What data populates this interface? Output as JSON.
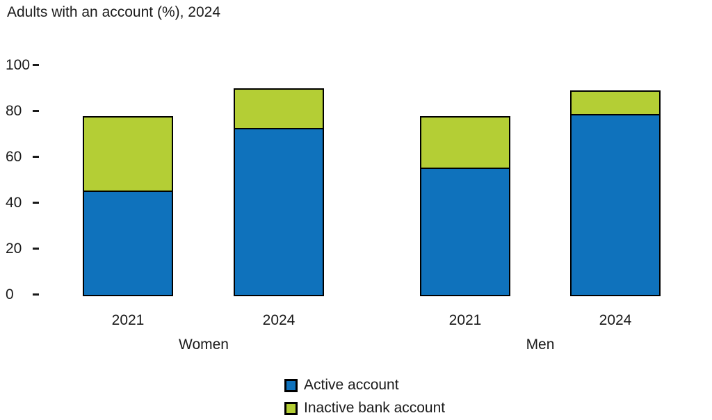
{
  "page": {
    "background_color": "#ffffff",
    "text_color": "#1a1a1a"
  },
  "chart_data": {
    "type": "bar",
    "stacked": true,
    "title": "Adults with an account (%), 2024",
    "xlabel": "",
    "ylabel": "",
    "ylim": [
      0,
      100
    ],
    "yticks": [
      0,
      20,
      40,
      60,
      80,
      100
    ],
    "grid": false,
    "legend_position": "bottom-center",
    "bar_border_color": "#000000",
    "groups": [
      {
        "label": "Women"
      },
      {
        "label": "Men"
      }
    ],
    "bar_labels": [
      "2021",
      "2024",
      "2021",
      "2024"
    ],
    "series": [
      {
        "name": "Active account",
        "color": "#0F72BC",
        "values": [
          45,
          72,
          55,
          78
        ]
      },
      {
        "name": "Inactive bank account",
        "color": "#B4CE35",
        "values": [
          33,
          18,
          23,
          11
        ]
      }
    ],
    "totals": [
      78,
      90,
      78,
      89
    ]
  }
}
